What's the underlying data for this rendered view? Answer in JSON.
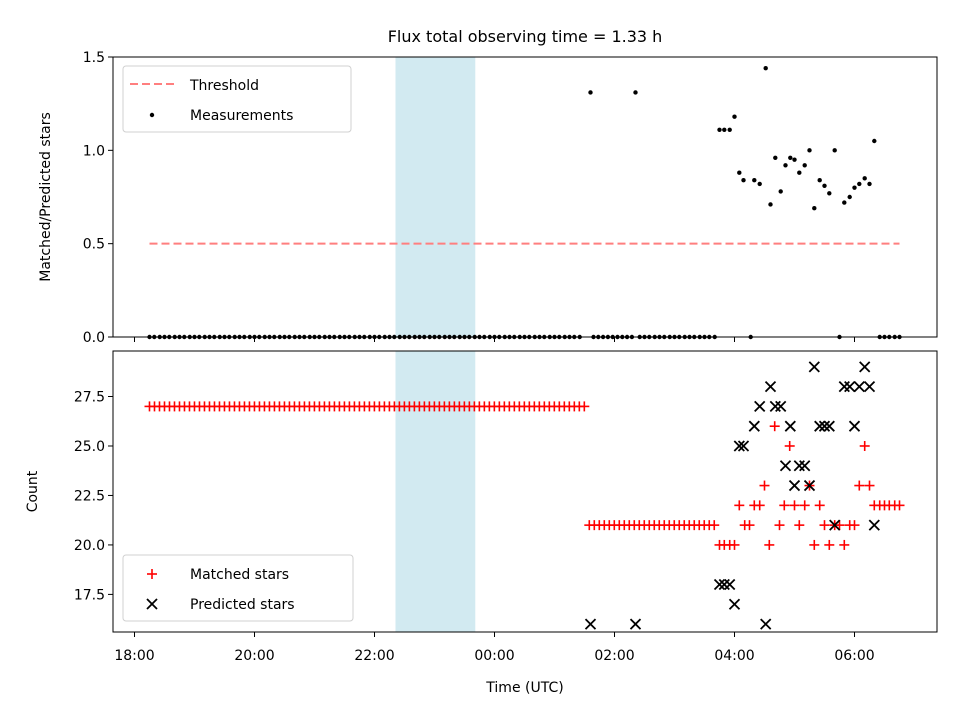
{
  "figure": {
    "title": "Flux total observing time = 1.33 h"
  },
  "colors": {
    "threshold": "#ff7f7f",
    "measurements": "#000000",
    "matched": "#ff0000",
    "predicted": "#000000",
    "span": "#add8e6"
  },
  "chart_data": [
    {
      "type": "scatter",
      "title": "Flux total observing time = 1.33 h",
      "xlabel": "",
      "ylabel": "Matched/Predicted stars",
      "x_unit": "hours since 18:00 UTC",
      "xlim": [
        -0.27,
        13.5
      ],
      "ylim": [
        0,
        1.5
      ],
      "yticks": [
        0.0,
        0.5,
        1.0,
        1.5
      ],
      "ytick_labels": [
        "0.0",
        "0.5",
        "1.0",
        "1.5"
      ],
      "legend": {
        "position": "upper left",
        "entries": [
          "Threshold",
          "Measurements"
        ]
      },
      "shaded_span": [
        4.35,
        5.68
      ],
      "threshold": {
        "name": "Threshold",
        "y": 0.5,
        "x_range": [
          0.25,
          12.75
        ]
      },
      "series": [
        {
          "name": "Measurements",
          "marker": "dot",
          "points": [
            [
              0.25,
              0
            ],
            [
              0.33,
              0
            ],
            [
              0.42,
              0
            ],
            [
              0.5,
              0
            ],
            [
              0.58,
              0
            ],
            [
              0.67,
              0
            ],
            [
              0.75,
              0
            ],
            [
              0.83,
              0
            ],
            [
              0.92,
              0
            ],
            [
              1.0,
              0
            ],
            [
              1.08,
              0
            ],
            [
              1.17,
              0
            ],
            [
              1.25,
              0
            ],
            [
              1.33,
              0
            ],
            [
              1.42,
              0
            ],
            [
              1.5,
              0
            ],
            [
              1.58,
              0
            ],
            [
              1.67,
              0
            ],
            [
              1.75,
              0
            ],
            [
              1.83,
              0
            ],
            [
              1.92,
              0
            ],
            [
              2.0,
              0
            ],
            [
              2.08,
              0
            ],
            [
              2.17,
              0
            ],
            [
              2.25,
              0
            ],
            [
              2.33,
              0
            ],
            [
              2.42,
              0
            ],
            [
              2.5,
              0
            ],
            [
              2.58,
              0
            ],
            [
              2.67,
              0
            ],
            [
              2.75,
              0
            ],
            [
              2.83,
              0
            ],
            [
              2.92,
              0
            ],
            [
              3.0,
              0
            ],
            [
              3.08,
              0
            ],
            [
              3.17,
              0
            ],
            [
              3.25,
              0
            ],
            [
              3.33,
              0
            ],
            [
              3.42,
              0
            ],
            [
              3.5,
              0
            ],
            [
              3.58,
              0
            ],
            [
              3.67,
              0
            ],
            [
              3.75,
              0
            ],
            [
              3.83,
              0
            ],
            [
              3.92,
              0
            ],
            [
              4.0,
              0
            ],
            [
              4.08,
              0
            ],
            [
              4.17,
              0
            ],
            [
              4.25,
              0
            ],
            [
              4.33,
              0
            ],
            [
              4.42,
              0
            ],
            [
              4.5,
              0
            ],
            [
              4.58,
              0
            ],
            [
              4.67,
              0
            ],
            [
              4.75,
              0
            ],
            [
              4.83,
              0
            ],
            [
              4.92,
              0
            ],
            [
              5.0,
              0
            ],
            [
              5.08,
              0
            ],
            [
              5.17,
              0
            ],
            [
              5.25,
              0
            ],
            [
              5.33,
              0
            ],
            [
              5.42,
              0
            ],
            [
              5.5,
              0
            ],
            [
              5.58,
              0
            ],
            [
              5.67,
              0
            ],
            [
              5.75,
              0
            ],
            [
              5.83,
              0
            ],
            [
              5.92,
              0
            ],
            [
              6.0,
              0
            ],
            [
              6.08,
              0
            ],
            [
              6.17,
              0
            ],
            [
              6.25,
              0
            ],
            [
              6.33,
              0
            ],
            [
              6.42,
              0
            ],
            [
              6.5,
              0
            ],
            [
              6.58,
              0
            ],
            [
              6.67,
              0
            ],
            [
              6.75,
              0
            ],
            [
              6.83,
              0
            ],
            [
              6.92,
              0
            ],
            [
              7.0,
              0
            ],
            [
              7.08,
              0
            ],
            [
              7.17,
              0
            ],
            [
              7.25,
              0
            ],
            [
              7.33,
              0
            ],
            [
              7.42,
              0
            ],
            [
              7.6,
              1.31
            ],
            [
              7.65,
              0
            ],
            [
              7.73,
              0
            ],
            [
              7.81,
              0
            ],
            [
              7.89,
              0
            ],
            [
              7.97,
              0
            ],
            [
              8.05,
              0
            ],
            [
              8.13,
              0
            ],
            [
              8.21,
              0
            ],
            [
              8.29,
              0
            ],
            [
              8.35,
              1.31
            ],
            [
              8.42,
              0
            ],
            [
              8.5,
              0
            ],
            [
              8.58,
              0
            ],
            [
              8.67,
              0
            ],
            [
              8.75,
              0
            ],
            [
              8.83,
              0
            ],
            [
              8.92,
              0
            ],
            [
              9.0,
              0
            ],
            [
              9.08,
              0
            ],
            [
              9.17,
              0
            ],
            [
              9.25,
              0
            ],
            [
              9.33,
              0
            ],
            [
              9.42,
              0
            ],
            [
              9.5,
              0
            ],
            [
              9.58,
              0
            ],
            [
              9.67,
              0
            ],
            [
              9.75,
              1.11
            ],
            [
              9.83,
              1.11
            ],
            [
              9.92,
              1.11
            ],
            [
              10.0,
              1.18
            ],
            [
              10.08,
              0.88
            ],
            [
              10.15,
              0.84
            ],
            [
              10.27,
              0
            ],
            [
              10.33,
              0.84
            ],
            [
              10.42,
              0.82
            ],
            [
              10.52,
              1.44
            ],
            [
              10.6,
              0.71
            ],
            [
              10.68,
              0.96
            ],
            [
              10.77,
              0.78
            ],
            [
              10.85,
              0.92
            ],
            [
              10.93,
              0.96
            ],
            [
              11.0,
              0.95
            ],
            [
              11.08,
              0.88
            ],
            [
              11.17,
              0.92
            ],
            [
              11.25,
              1.0
            ],
            [
              11.33,
              0.69
            ],
            [
              11.42,
              0.84
            ],
            [
              11.5,
              0.81
            ],
            [
              11.58,
              0.77
            ],
            [
              11.67,
              1.0
            ],
            [
              11.75,
              0
            ],
            [
              11.83,
              0.72
            ],
            [
              11.92,
              0.75
            ],
            [
              12.0,
              0.8
            ],
            [
              12.08,
              0.82
            ],
            [
              12.17,
              0.85
            ],
            [
              12.25,
              0.82
            ],
            [
              12.33,
              1.05
            ],
            [
              12.42,
              0
            ],
            [
              12.5,
              0
            ],
            [
              12.58,
              0
            ],
            [
              12.67,
              0
            ],
            [
              12.75,
              0
            ]
          ]
        }
      ]
    },
    {
      "type": "scatter",
      "title": "",
      "xlabel": "Time (UTC)",
      "ylabel": "Count",
      "x_unit": "hours since 18:00 UTC",
      "xlim": [
        -0.27,
        13.5
      ],
      "ylim": [
        15.6,
        29.8
      ],
      "yticks": [
        17.5,
        20.0,
        22.5,
        25.0,
        27.5
      ],
      "ytick_labels": [
        "17.5",
        "20.0",
        "22.5",
        "25.0",
        "27.5"
      ],
      "xticks": [
        0,
        2,
        4,
        6,
        8,
        10,
        12
      ],
      "xtick_labels": [
        "18:00",
        "20:00",
        "22:00",
        "00:00",
        "02:00",
        "04:00",
        "06:00"
      ],
      "legend": {
        "position": "lower left",
        "entries": [
          "Matched stars",
          "Predicted stars"
        ]
      },
      "shaded_span": [
        4.35,
        5.68
      ],
      "series": [
        {
          "name": "Matched stars",
          "marker": "plus",
          "run_27": {
            "x_start": 0.25,
            "x_end": 7.58,
            "step": 0.0833,
            "y": 27
          },
          "run_21": {
            "x_start": 7.58,
            "x_end": 9.67,
            "step": 0.0833,
            "y": 21
          },
          "points": [
            [
              9.75,
              20
            ],
            [
              9.83,
              20
            ],
            [
              9.92,
              20
            ],
            [
              10.0,
              20
            ],
            [
              10.08,
              22
            ],
            [
              10.17,
              21
            ],
            [
              10.25,
              21
            ],
            [
              10.33,
              22
            ],
            [
              10.42,
              22
            ],
            [
              10.5,
              23
            ],
            [
              10.58,
              20
            ],
            [
              10.67,
              26
            ],
            [
              10.75,
              21
            ],
            [
              10.83,
              22
            ],
            [
              10.92,
              25
            ],
            [
              11.0,
              22
            ],
            [
              11.08,
              21
            ],
            [
              11.17,
              22
            ],
            [
              11.25,
              23
            ],
            [
              11.33,
              20
            ],
            [
              11.42,
              22
            ],
            [
              11.5,
              21
            ],
            [
              11.58,
              20
            ],
            [
              11.67,
              21
            ],
            [
              11.75,
              21
            ],
            [
              11.83,
              20
            ],
            [
              11.92,
              21
            ],
            [
              12.0,
              21
            ],
            [
              12.08,
              23
            ],
            [
              12.17,
              25
            ],
            [
              12.25,
              23
            ],
            [
              12.33,
              22
            ],
            [
              12.42,
              22
            ],
            [
              12.5,
              22
            ],
            [
              12.58,
              22
            ],
            [
              12.67,
              22
            ],
            [
              12.75,
              22
            ]
          ]
        },
        {
          "name": "Predicted stars",
          "marker": "x",
          "points": [
            [
              7.6,
              16
            ],
            [
              8.35,
              16
            ],
            [
              9.75,
              18
            ],
            [
              9.83,
              18
            ],
            [
              9.92,
              18
            ],
            [
              10.0,
              17
            ],
            [
              10.08,
              25
            ],
            [
              10.15,
              25
            ],
            [
              10.33,
              26
            ],
            [
              10.42,
              27
            ],
            [
              10.52,
              16
            ],
            [
              10.6,
              28
            ],
            [
              10.68,
              27
            ],
            [
              10.77,
              27
            ],
            [
              10.85,
              24
            ],
            [
              10.93,
              26
            ],
            [
              11.0,
              23
            ],
            [
              11.08,
              24
            ],
            [
              11.17,
              24
            ],
            [
              11.25,
              23
            ],
            [
              11.33,
              29
            ],
            [
              11.42,
              26
            ],
            [
              11.5,
              26
            ],
            [
              11.58,
              26
            ],
            [
              11.67,
              21
            ],
            [
              11.83,
              28
            ],
            [
              11.92,
              28
            ],
            [
              12.0,
              26
            ],
            [
              12.08,
              28
            ],
            [
              12.17,
              29
            ],
            [
              12.25,
              28
            ],
            [
              12.33,
              21
            ]
          ]
        }
      ]
    }
  ]
}
